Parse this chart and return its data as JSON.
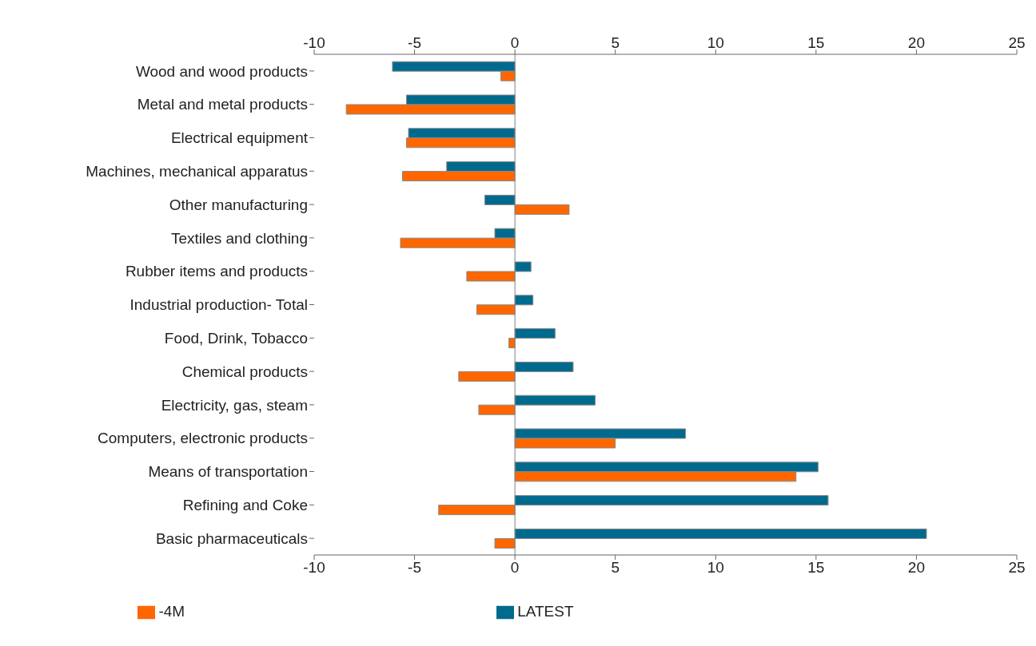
{
  "chart_data": {
    "type": "bar",
    "orientation": "horizontal",
    "categories": [
      "Wood and wood products",
      "Metal and metal products",
      "Electrical equipment",
      "Machines, mechanical apparatus",
      "Other manufacturing",
      "Textiles and clothing",
      "Rubber items and products",
      "Industrial production- Total",
      "Food, Drink, Tobacco",
      "Chemical products",
      "Electricity, gas, steam",
      "Computers, electronic products",
      "Means of transportation",
      "Refining and Coke",
      "Basic pharmaceuticals"
    ],
    "series": [
      {
        "name": "LATEST",
        "color": "#006a8e",
        "values": [
          -6.1,
          -5.4,
          -5.3,
          -3.4,
          -1.5,
          -1.0,
          0.8,
          0.9,
          2.0,
          2.9,
          4.0,
          8.5,
          15.1,
          15.6,
          20.5
        ]
      },
      {
        "name": "-4M",
        "color": "#ff6600",
        "values": [
          -0.7,
          -8.4,
          -5.4,
          -5.6,
          2.7,
          -5.7,
          -2.4,
          -1.9,
          -0.3,
          -2.8,
          -1.8,
          5.0,
          14.0,
          -3.8,
          -1.0
        ]
      }
    ],
    "xlim": [
      -10,
      25
    ],
    "xticks": [
      -10,
      -5,
      0,
      5,
      10,
      15,
      20,
      25
    ],
    "x2lim": [
      -10,
      25
    ],
    "x2ticks": [
      -10,
      -5,
      0,
      5,
      10,
      15,
      20,
      25
    ],
    "ref_lines": [
      {
        "axis": "x",
        "value": 0,
        "color": "#808080"
      }
    ],
    "grid": false,
    "legend": "bottom"
  }
}
